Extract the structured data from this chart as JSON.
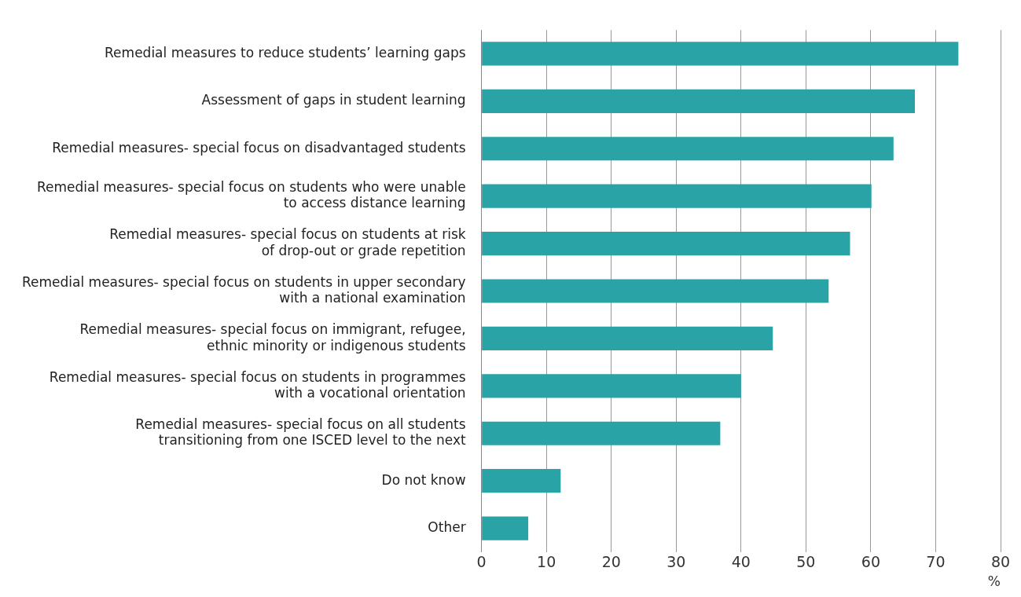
{
  "chart_data": {
    "type": "bar",
    "orientation": "horizontal",
    "categories": [
      "Remedial measures to reduce students’ learning gaps",
      "Assessment of gaps in student learning",
      "Remedial measures- special focus on disadvantaged students",
      "Remedial measures- special focus on students who were unable\nto access distance learning",
      "Remedial measures- special focus on students at risk\nof drop-out or grade repetition",
      "Remedial measures- special focus on students in upper secondary\nwith a national examination",
      "Remedial measures- special focus on immigrant, refugee,\nethnic minority or indigenous students",
      "Remedial measures- special focus on students in programmes\nwith a vocational orientation",
      "Remedial measures- special focus on all students\ntransitioning from one ISCED level to the next",
      "Do not know",
      "Other"
    ],
    "values": [
      73.5,
      66.8,
      63.5,
      60.1,
      56.8,
      53.5,
      44.9,
      40.0,
      36.8,
      12.2,
      7.2
    ],
    "color": "#2aa3a6",
    "xlim": [
      0,
      80
    ],
    "xticks": [
      0,
      10,
      20,
      30,
      40,
      50,
      60,
      70,
      80
    ],
    "xlabel": "%",
    "grid": "x",
    "legend": false
  }
}
